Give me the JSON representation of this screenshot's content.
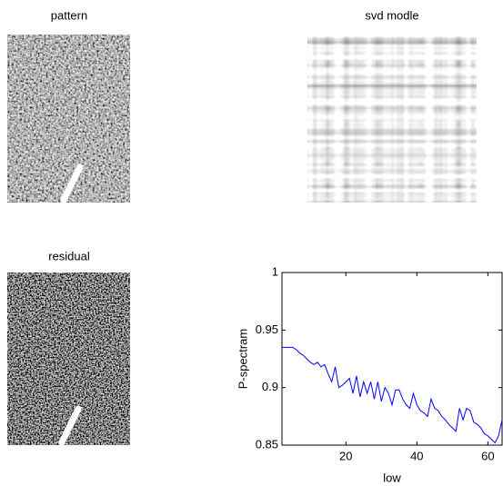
{
  "images": [
    {
      "title": "pattern"
    },
    {
      "title": "svd modle"
    },
    {
      "title": "residual"
    }
  ],
  "chart_data": {
    "type": "line",
    "ylabel": "P-spectram",
    "xlabel": "low",
    "x": [
      2,
      3,
      4,
      5,
      6,
      7,
      8,
      9,
      10,
      11,
      12,
      13,
      14,
      15,
      16,
      17,
      18,
      19,
      20,
      21,
      22,
      23,
      24,
      25,
      26,
      27,
      28,
      29,
      30,
      31,
      32,
      33,
      34,
      35,
      36,
      37,
      38,
      39,
      40,
      41,
      42,
      43,
      44,
      45,
      46,
      47,
      48,
      49,
      50,
      51,
      52,
      53,
      54,
      55,
      56,
      57,
      58,
      59,
      60,
      61,
      62,
      63,
      64
    ],
    "series": [
      {
        "color": "#0000ff",
        "values": [
          0.935,
          0.935,
          0.935,
          0.935,
          0.933,
          0.93,
          0.928,
          0.925,
          0.922,
          0.92,
          0.922,
          0.918,
          0.92,
          0.912,
          0.905,
          0.918,
          0.9,
          0.902,
          0.905,
          0.908,
          0.895,
          0.91,
          0.892,
          0.905,
          0.895,
          0.905,
          0.89,
          0.905,
          0.888,
          0.9,
          0.895,
          0.885,
          0.898,
          0.898,
          0.89,
          0.885,
          0.882,
          0.895,
          0.885,
          0.88,
          0.878,
          0.875,
          0.89,
          0.882,
          0.88,
          0.875,
          0.872,
          0.868,
          0.865,
          0.862,
          0.882,
          0.872,
          0.882,
          0.88,
          0.87,
          0.868,
          0.865,
          0.86,
          0.858,
          0.855,
          0.852,
          0.858,
          0.872
        ]
      }
    ],
    "xlim": [
      2,
      64
    ],
    "ylim": [
      0.85,
      1
    ],
    "xticks": [
      20,
      40,
      60
    ],
    "yticks": [
      0.85,
      0.9,
      0.95,
      1
    ]
  }
}
